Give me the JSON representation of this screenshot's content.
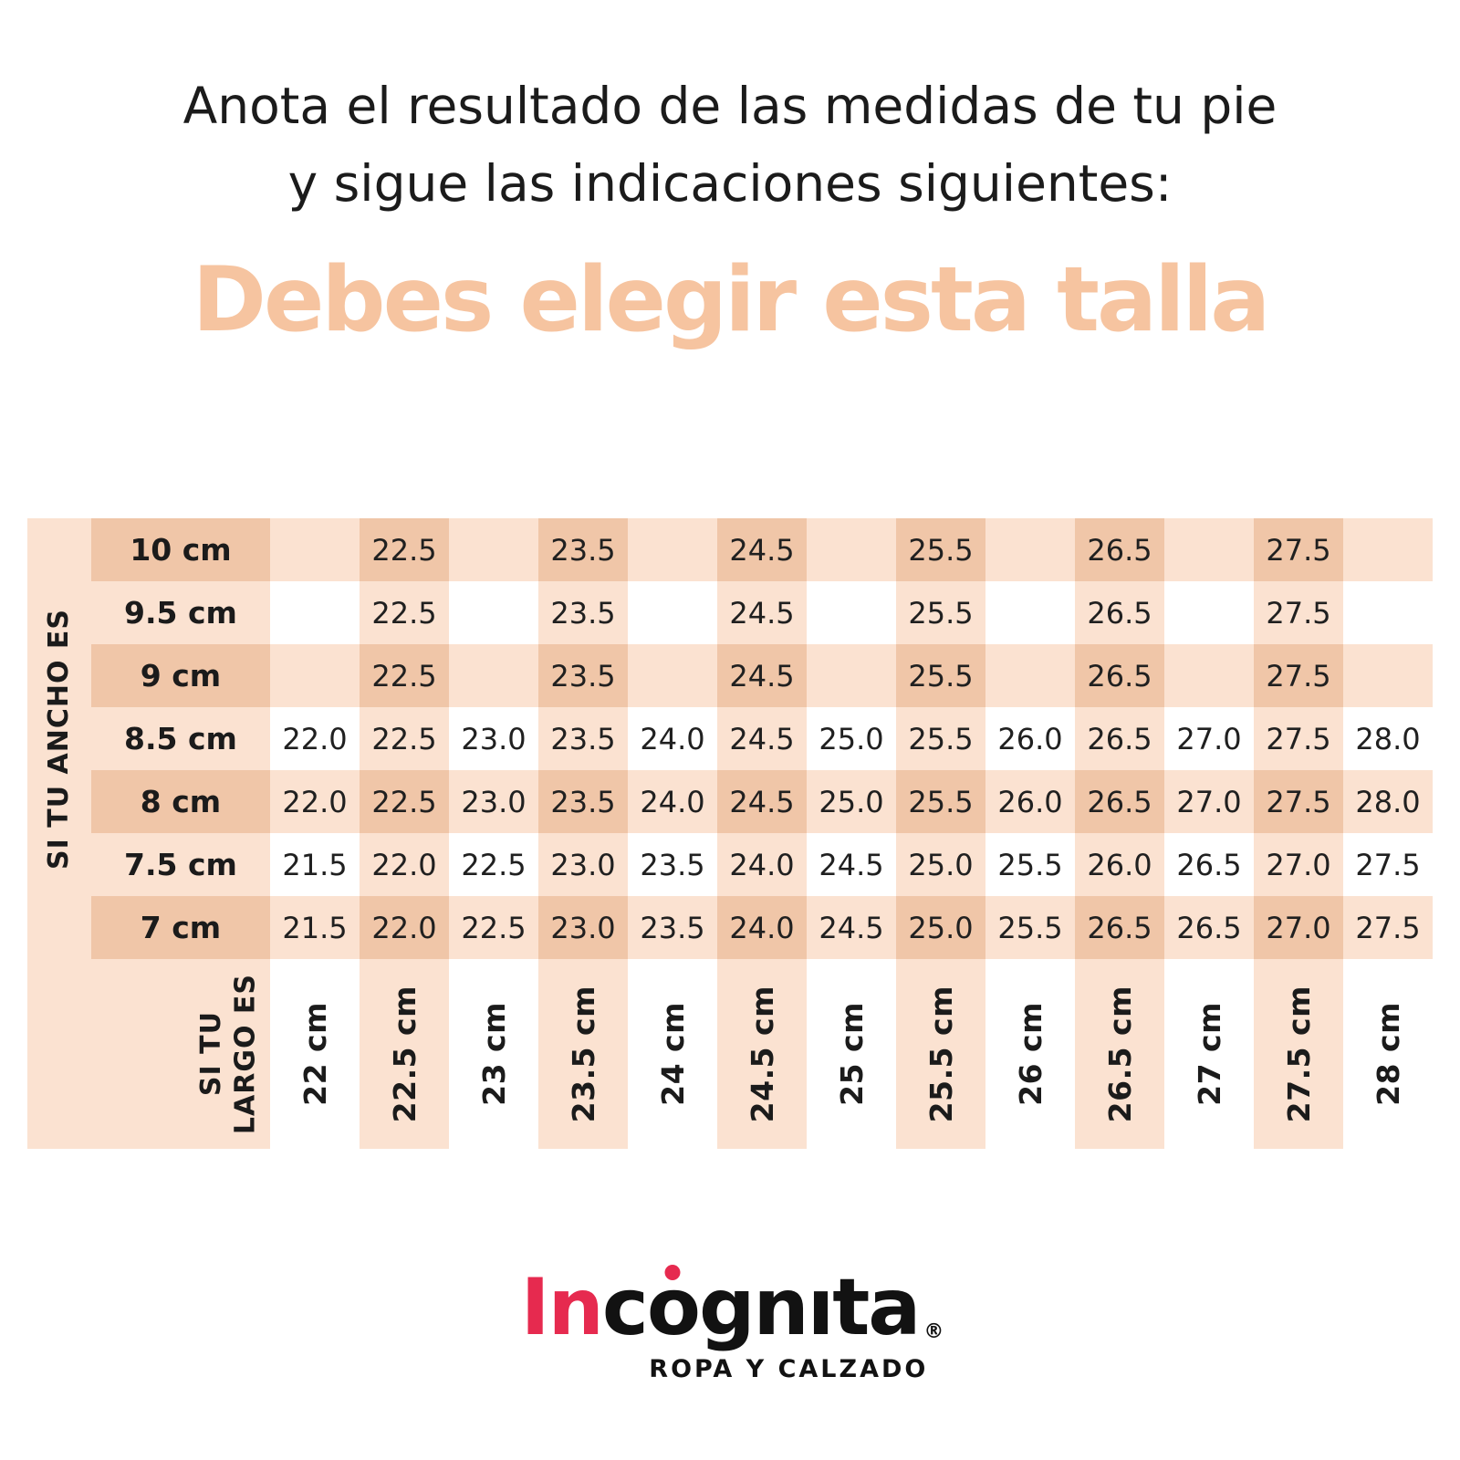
{
  "page": {
    "title_line1": "Anota el resultado de las medidas de tu pie",
    "title_line2": "y sigue las indicaciones siguientes:",
    "heading": "Debes elegir esta talla"
  },
  "colors": {
    "peach_light": "#fbe2d1",
    "peach_medium": "#f0c6a8",
    "heading_peach": "#f6c4a0",
    "brand_red": "#e62a4f",
    "text_black": "#1b1b1b"
  },
  "chart_data": {
    "type": "table",
    "title": "Debes elegir esta talla",
    "row_axis_label": "SI TU ANCHO ES",
    "col_axis_label_line1": "SI TU",
    "col_axis_label_line2": "LARGO ES",
    "row_categories": [
      "10 cm",
      "9.5 cm",
      "9 cm",
      "8.5 cm",
      "8 cm",
      "7.5 cm",
      "7 cm"
    ],
    "col_categories": [
      "22 cm",
      "22.5 cm",
      "23 cm",
      "23.5 cm",
      "24 cm",
      "24.5 cm",
      "25 cm",
      "25.5 cm",
      "26 cm",
      "26.5 cm",
      "27 cm",
      "27.5 cm",
      "28 cm"
    ],
    "values": [
      [
        null,
        "22.5",
        null,
        "23.5",
        null,
        "24.5",
        null,
        "25.5",
        null,
        "26.5",
        null,
        "27.5",
        null
      ],
      [
        null,
        "22.5",
        null,
        "23.5",
        null,
        "24.5",
        null,
        "25.5",
        null,
        "26.5",
        null,
        "27.5",
        null
      ],
      [
        null,
        "22.5",
        null,
        "23.5",
        null,
        "24.5",
        null,
        "25.5",
        null,
        "26.5",
        null,
        "27.5",
        null
      ],
      [
        "22.0",
        "22.5",
        "23.0",
        "23.5",
        "24.0",
        "24.5",
        "25.0",
        "25.5",
        "26.0",
        "26.5",
        "27.0",
        "27.5",
        "28.0"
      ],
      [
        "22.0",
        "22.5",
        "23.0",
        "23.5",
        "24.0",
        "24.5",
        "25.0",
        "25.5",
        "26.0",
        "26.5",
        "27.0",
        "27.5",
        "28.0"
      ],
      [
        "21.5",
        "22.0",
        "22.5",
        "23.0",
        "23.5",
        "24.0",
        "24.5",
        "25.0",
        "25.5",
        "26.0",
        "26.5",
        "27.0",
        "27.5"
      ],
      [
        "21.5",
        "22.0",
        "22.5",
        "23.0",
        "23.5",
        "24.0",
        "24.5",
        "25.0",
        "25.5",
        "26.5",
        "26.5",
        "27.0",
        "27.5"
      ]
    ]
  },
  "logo": {
    "part_red": "In",
    "part_black1": "c",
    "part_o": "o",
    "part_black2": "gnıta",
    "registered": "®",
    "tagline": "ROPA Y CALZADO"
  }
}
